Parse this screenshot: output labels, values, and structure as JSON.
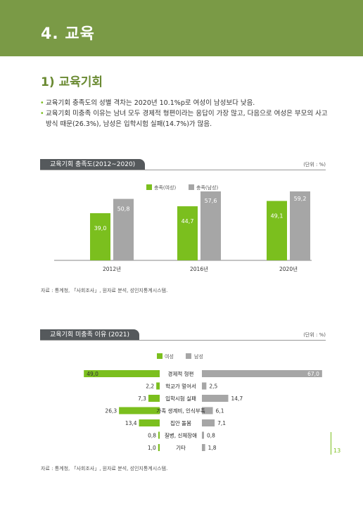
{
  "header": {
    "title": "4. 교육"
  },
  "section": {
    "title": "1) 교육기회"
  },
  "bullets": [
    "교육기회 충족도의 성별 격차는 2020년 10.1%p로 여성이 남성보다 낮음.",
    "교육기회 미충족 이유는 남녀 모두 경제적 형편이라는 응답이 가장 많고, 다음으로 여성은 부모의 사고방식 때문(26.3%), 남성은 입학시험 실패(14.7%)가 많음."
  ],
  "chart1": {
    "tab": "교육기회 충족도(2012~2020)",
    "unit": "(단위 : %)",
    "source": "자료 : 통계청, 「사회조사」, 원자료 분석, 성인지통계시스템."
  },
  "chart2": {
    "tab": "교육기회 미충족 이유 (2021)",
    "unit": "(단위 : %)",
    "source": "자료 : 통계청, 「사회조사」, 원자료 분석, 성인지통계시스템."
  },
  "page": {
    "number": "13"
  },
  "colors": {
    "green": "#7bbf1e",
    "gray": "#a6a6a6",
    "header": "#7a9a46"
  },
  "chart_data": [
    {
      "type": "bar",
      "categories": [
        "2012년",
        "2016년",
        "2020년"
      ],
      "series": [
        {
          "name": "충족(여성)",
          "values": [
            39.0,
            44.7,
            49.1
          ],
          "labels": [
            "39,0",
            "44,7",
            "49,1"
          ]
        },
        {
          "name": "충족(남성)",
          "values": [
            50.8,
            57.6,
            59.2
          ],
          "labels": [
            "50,8",
            "57,6",
            "59,2"
          ]
        }
      ]
    },
    {
      "type": "bar",
      "orientation": "horizontal-butterfly",
      "categories": [
        "경제적 형편",
        "학교가 멀어서",
        "입학시험 실패",
        "가족 생계비, 인식부족",
        "집안 돌봄",
        "질병, 신체장애",
        "기타"
      ],
      "series": [
        {
          "name": "여성",
          "values": [
            49.0,
            2.2,
            7.3,
            26.3,
            13.4,
            0.8,
            1.0
          ],
          "labels": [
            "49,0",
            "2,2",
            "7,3",
            "26,3",
            "13,4",
            "0,8",
            "1,0"
          ]
        },
        {
          "name": "남성",
          "values": [
            67.0,
            2.5,
            14.7,
            6.1,
            7.1,
            0.8,
            1.8
          ],
          "labels": [
            "67,0",
            "2,5",
            "14,7",
            "6,1",
            "7,1",
            "0,8",
            "1,8"
          ]
        }
      ]
    }
  ]
}
